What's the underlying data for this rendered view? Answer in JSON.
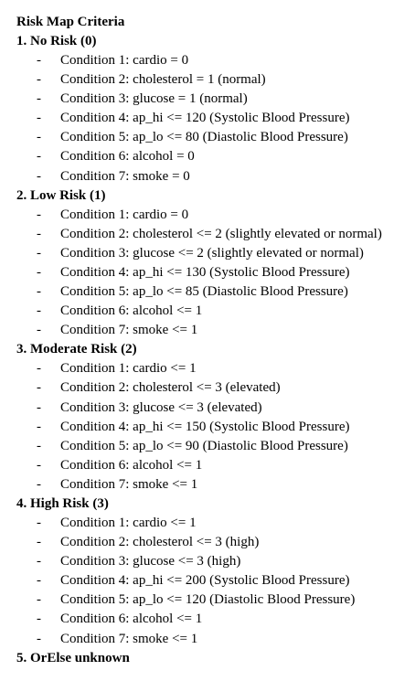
{
  "title": "Risk Map Criteria",
  "levels": [
    {
      "heading": "1. No Risk (0)",
      "conditions": [
        "Condition 1: cardio = 0",
        "Condition 2: cholesterol = 1 (normal)",
        "Condition 3: glucose = 1 (normal)",
        "Condition 4: ap_hi <= 120 (Systolic Blood Pressure)",
        "Condition 5: ap_lo <= 80 (Diastolic Blood Pressure)",
        "Condition 6: alcohol = 0",
        "Condition 7: smoke = 0"
      ]
    },
    {
      "heading": "2. Low Risk (1)",
      "conditions": [
        "Condition 1: cardio = 0",
        "Condition 2: cholesterol <= 2 (slightly elevated or normal)",
        "Condition 3: glucose <= 2 (slightly elevated or normal)",
        "Condition 4: ap_hi <= 130 (Systolic Blood Pressure)",
        "Condition 5: ap_lo <= 85 (Diastolic Blood Pressure)",
        "Condition 6: alcohol <= 1",
        "Condition 7: smoke <= 1"
      ]
    },
    {
      "heading": "3. Moderate Risk (2)",
      "conditions": [
        "Condition 1: cardio <= 1",
        "Condition 2: cholesterol <= 3 (elevated)",
        "Condition 3: glucose <= 3 (elevated)",
        "Condition 4: ap_hi <= 150 (Systolic Blood Pressure)",
        "Condition 5: ap_lo <= 90 (Diastolic Blood Pressure)",
        "Condition 6: alcohol <= 1",
        "Condition 7: smoke <= 1"
      ]
    },
    {
      "heading": "4. High Risk (3)",
      "conditions": [
        "Condition 1: cardio <= 1",
        "Condition 2: cholesterol <= 3 (high)",
        "Condition 3: glucose <= 3 (high)",
        "Condition 4: ap_hi <= 200 (Systolic Blood Pressure)",
        "Condition 5: ap_lo <= 120 (Diastolic Blood Pressure)",
        "Condition 6: alcohol <= 1",
        "Condition 7: smoke <= 1"
      ]
    }
  ],
  "final_heading": "5. OrElse unknown",
  "bullet": "-"
}
